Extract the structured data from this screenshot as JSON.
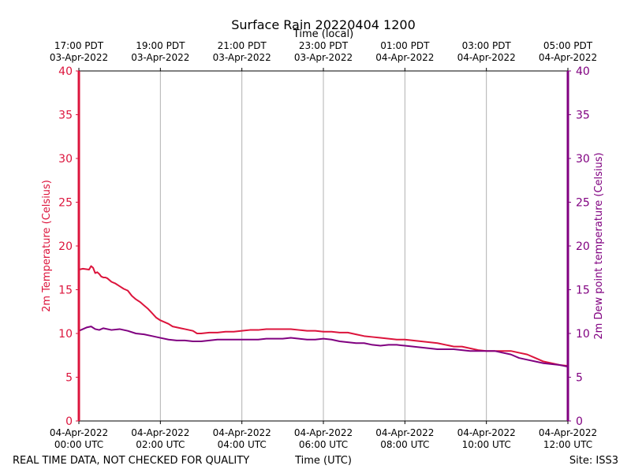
{
  "chart_data": {
    "type": "line",
    "title": "Surface Rain 20220404 1200",
    "top_axis_label": "Time (local)",
    "xlabel": "Time (UTC)",
    "ylabel_left": "2m Temperature (Celsius)",
    "ylabel_right": "2m Dew point temperature (Celsius)",
    "footer_left": "REAL TIME DATA, NOT CHECKED FOR QUALITY",
    "footer_right": "Site: ISS3",
    "ylim": [
      0,
      40
    ],
    "y_ticks": [
      "0",
      "5",
      "10",
      "15",
      "20",
      "25",
      "30",
      "35",
      "40"
    ],
    "xlim_hours": [
      0,
      12
    ],
    "x_ticks_utc": [
      {
        "hour": 0,
        "line1": "04-Apr-2022",
        "line2": "00:00 UTC"
      },
      {
        "hour": 2,
        "line1": "04-Apr-2022",
        "line2": "02:00 UTC"
      },
      {
        "hour": 4,
        "line1": "04-Apr-2022",
        "line2": "04:00 UTC"
      },
      {
        "hour": 6,
        "line1": "04-Apr-2022",
        "line2": "06:00 UTC"
      },
      {
        "hour": 8,
        "line1": "04-Apr-2022",
        "line2": "08:00 UTC"
      },
      {
        "hour": 10,
        "line1": "04-Apr-2022",
        "line2": "10:00 UTC"
      },
      {
        "hour": 12,
        "line1": "04-Apr-2022",
        "line2": "12:00 UTC"
      }
    ],
    "x_ticks_local": [
      {
        "hour": 0,
        "line1": "17:00 PDT",
        "line2": "03-Apr-2022"
      },
      {
        "hour": 2,
        "line1": "19:00 PDT",
        "line2": "03-Apr-2022"
      },
      {
        "hour": 4,
        "line1": "21:00 PDT",
        "line2": "03-Apr-2022"
      },
      {
        "hour": 6,
        "line1": "23:00 PDT",
        "line2": "03-Apr-2022"
      },
      {
        "hour": 8,
        "line1": "01:00 PDT",
        "line2": "04-Apr-2022"
      },
      {
        "hour": 10,
        "line1": "03:00 PDT",
        "line2": "04-Apr-2022"
      },
      {
        "hour": 12,
        "line1": "05:00 PDT",
        "line2": "04-Apr-2022"
      }
    ],
    "colors": {
      "temperature": "#dc143c",
      "dewpoint": "#800080",
      "grid": "#b0b0b0"
    },
    "series": [
      {
        "name": "2m Temperature",
        "axis": "left",
        "x": [
          0,
          0.1,
          0.25,
          0.3,
          0.35,
          0.4,
          0.45,
          0.5,
          0.55,
          0.6,
          0.65,
          0.7,
          0.8,
          0.9,
          1.0,
          1.1,
          1.2,
          1.3,
          1.4,
          1.5,
          1.6,
          1.7,
          1.8,
          1.9,
          2.0,
          2.1,
          2.2,
          2.3,
          2.4,
          2.5,
          2.6,
          2.7,
          2.8,
          2.9,
          3.0,
          3.2,
          3.4,
          3.6,
          3.8,
          4.0,
          4.2,
          4.4,
          4.6,
          4.8,
          5.0,
          5.2,
          5.4,
          5.6,
          5.8,
          6.0,
          6.2,
          6.4,
          6.6,
          6.8,
          7.0,
          7.2,
          7.4,
          7.6,
          7.8,
          8.0,
          8.2,
          8.4,
          8.6,
          8.8,
          9.0,
          9.1,
          9.2,
          9.4,
          9.6,
          9.8,
          10.0,
          10.2,
          10.4,
          10.6,
          10.8,
          11.0,
          11.2,
          11.4,
          11.6,
          11.8,
          12.0
        ],
        "y": [
          17.3,
          17.4,
          17.3,
          17.7,
          17.5,
          16.9,
          17.0,
          16.8,
          16.5,
          16.4,
          16.4,
          16.3,
          15.9,
          15.7,
          15.4,
          15.1,
          14.9,
          14.3,
          13.9,
          13.6,
          13.2,
          12.8,
          12.3,
          11.8,
          11.5,
          11.3,
          11.1,
          10.8,
          10.7,
          10.6,
          10.5,
          10.4,
          10.3,
          10.0,
          10.0,
          10.1,
          10.1,
          10.2,
          10.2,
          10.3,
          10.4,
          10.4,
          10.5,
          10.5,
          10.5,
          10.5,
          10.4,
          10.3,
          10.3,
          10.2,
          10.2,
          10.1,
          10.1,
          9.9,
          9.7,
          9.6,
          9.5,
          9.4,
          9.3,
          9.3,
          9.2,
          9.1,
          9.0,
          8.9,
          8.7,
          8.6,
          8.5,
          8.5,
          8.3,
          8.1,
          8.0,
          8.0,
          8.0,
          8.0,
          7.8,
          7.6,
          7.2,
          6.8,
          6.6,
          6.4,
          6.3
        ]
      },
      {
        "name": "2m Dew point temperature",
        "axis": "right",
        "x": [
          0,
          0.1,
          0.2,
          0.3,
          0.4,
          0.5,
          0.6,
          0.8,
          1.0,
          1.2,
          1.4,
          1.6,
          1.8,
          2.0,
          2.2,
          2.4,
          2.6,
          2.8,
          3.0,
          3.2,
          3.4,
          3.6,
          3.8,
          4.0,
          4.2,
          4.4,
          4.6,
          4.8,
          5.0,
          5.2,
          5.4,
          5.6,
          5.8,
          6.0,
          6.2,
          6.4,
          6.6,
          6.8,
          7.0,
          7.2,
          7.4,
          7.6,
          7.8,
          8.0,
          8.2,
          8.4,
          8.6,
          8.8,
          9.0,
          9.2,
          9.4,
          9.6,
          9.8,
          10.0,
          10.2,
          10.4,
          10.6,
          10.8,
          11.0,
          11.2,
          11.4,
          11.6,
          11.8,
          12.0
        ],
        "y": [
          10.3,
          10.5,
          10.7,
          10.8,
          10.5,
          10.4,
          10.6,
          10.4,
          10.5,
          10.3,
          10.0,
          9.9,
          9.7,
          9.5,
          9.3,
          9.2,
          9.2,
          9.1,
          9.1,
          9.2,
          9.3,
          9.3,
          9.3,
          9.3,
          9.3,
          9.3,
          9.4,
          9.4,
          9.4,
          9.5,
          9.4,
          9.3,
          9.3,
          9.4,
          9.3,
          9.1,
          9.0,
          8.9,
          8.9,
          8.7,
          8.6,
          8.7,
          8.7,
          8.6,
          8.5,
          8.4,
          8.3,
          8.2,
          8.2,
          8.2,
          8.1,
          8.0,
          8.0,
          8.0,
          8.0,
          7.8,
          7.6,
          7.2,
          7.0,
          6.8,
          6.6,
          6.5,
          6.4,
          6.2
        ]
      }
    ]
  }
}
